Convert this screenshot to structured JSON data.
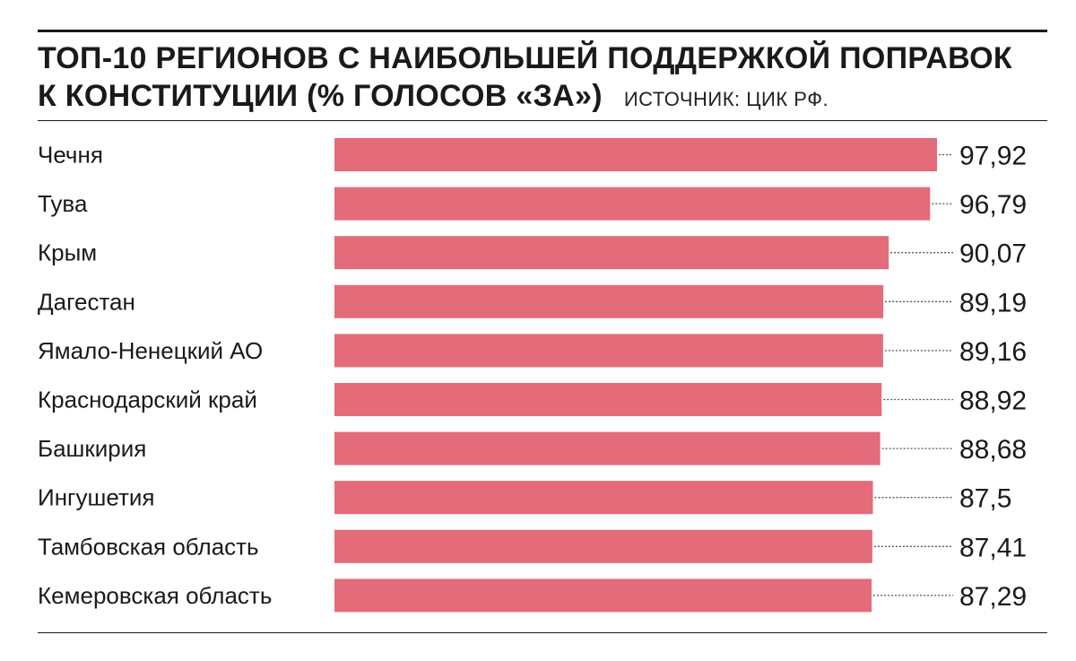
{
  "header": {
    "title_line1": "ТОП-10 РЕГИОНОВ С НАИБОЛЬШЕЙ ПОДДЕРЖКОЙ ПОПРАВОК",
    "title_line2": "К КОНСТИТУЦИИ (% ГОЛОСОВ «ЗА»)",
    "source": "ИСТОЧНИК: ЦИК РФ."
  },
  "colors": {
    "bar": "#e36b7a",
    "text": "#1a1a1a",
    "leader": "#555555"
  },
  "chart_data": {
    "type": "bar",
    "orientation": "horizontal",
    "title": "ТОП-10 РЕГИОНОВ С НАИБОЛЬШЕЙ ПОДДЕРЖКОЙ ПОПРАВОК К КОНСТИТУЦИИ (% ГОЛОСОВ «ЗА»)",
    "xlabel": "",
    "ylabel": "",
    "grid": false,
    "legend": "none",
    "categories": [
      "Чечня",
      "Тува",
      "Крым",
      "Дагестан",
      "Ямало-Ненецкий АО",
      "Краснодарский край",
      "Башкирия",
      "Ингушетия",
      "Тамбовская область",
      "Кемеровская область"
    ],
    "values": [
      97.92,
      96.79,
      90.07,
      89.19,
      89.16,
      88.92,
      88.68,
      87.5,
      87.41,
      87.29
    ],
    "value_labels": [
      "97,92",
      "96,79",
      "90,07",
      "89,19",
      "89,16",
      "88,92",
      "88,68",
      "87,5",
      "87,41",
      "87,29"
    ],
    "xlim": [
      0,
      97.92
    ]
  }
}
